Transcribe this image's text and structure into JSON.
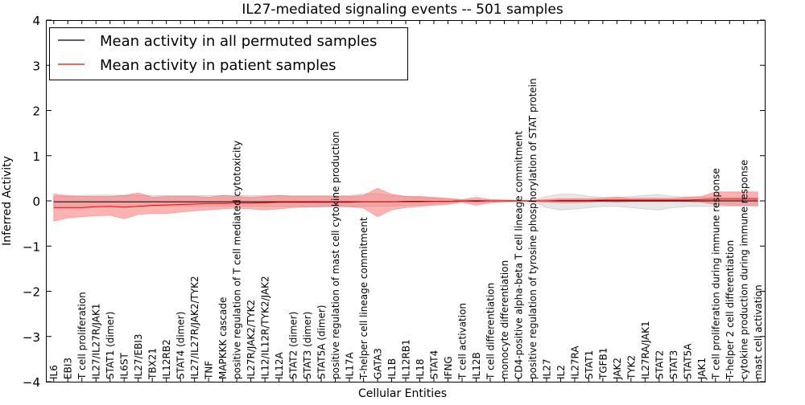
{
  "chart_data": {
    "type": "line",
    "title": "IL27-mediated signaling events -- 501 samples",
    "xlabel": "Cellular Entities",
    "ylabel": "Inferred Activity",
    "ylim": [
      -4,
      4
    ],
    "yticks": [
      -4,
      -3,
      -2,
      -1,
      0,
      1,
      2,
      3,
      4
    ],
    "ytick_labels": [
      "−4",
      "−3",
      "−2",
      "−1",
      "0",
      "1",
      "2",
      "3",
      "4"
    ],
    "grid": false,
    "legend_position": "top-left",
    "colors": {
      "permuted": "#000000",
      "patient": "#ff0000",
      "permuted_band": "#bbbbbb",
      "patient_band": "#ff5555"
    },
    "categories": [
      "IL6",
      "EBI3",
      "T cell proliferation",
      "IL27/IL27R/JAK1",
      "STAT1 (dimer)",
      "IL6ST",
      "IL27/EBI3",
      "TBX21",
      "IL12RB2",
      "STAT4 (dimer)",
      "IL27/IL27R/JAK2/TYK2",
      "TNF",
      "MAPKKK cascade",
      "positive regulation of T cell mediated cytotoxicity",
      "IL27R/JAK2/TYK2",
      "IL12/IL12R/TYK2/JAK2",
      "IL12A",
      "STAT2 (dimer)",
      "STAT3 (dimer)",
      "STAT5A (dimer)",
      "positive regulation of mast cell cytokine production",
      "IL17A",
      "T-helper cell lineage commitment",
      "GATA3",
      "IL1B",
      "IL12RB1",
      "IL18",
      "STAT4",
      "IFNG",
      "T cell activation",
      "IL12B",
      "T cell differentiation",
      "monocyte differentiation",
      "CD4-positive alpha-beta T cell lineage commitment",
      "positive regulation of tyrosine phosphorylation of STAT protein",
      "IL27",
      "IL2",
      "IL27RA",
      "STAT1",
      "TGFB1",
      "JAK2",
      "TYK2",
      "IL27RA/JAK1",
      "STAT2",
      "STAT3",
      "STAT5A",
      "JAK1",
      "T cell proliferation during immune response",
      "T-helper 2 cell differentiation",
      "cytokine production during immune response",
      "mast cell activation"
    ],
    "series": [
      {
        "name": "Mean activity in all permuted samples",
        "values": [
          -0.02,
          -0.02,
          -0.02,
          -0.02,
          -0.02,
          -0.02,
          -0.02,
          -0.02,
          -0.02,
          -0.02,
          -0.02,
          -0.02,
          -0.02,
          -0.02,
          -0.02,
          -0.02,
          -0.02,
          -0.02,
          -0.02,
          -0.02,
          -0.02,
          -0.02,
          -0.02,
          -0.02,
          -0.02,
          -0.01,
          -0.01,
          -0.01,
          -0.01,
          0.0,
          0.0,
          0.0,
          0.0,
          0.0,
          0.0,
          0.0,
          0.0,
          0.0,
          0.0,
          0.0,
          0.0,
          0.0,
          0.0,
          0.0,
          0.0,
          0.0,
          0.0,
          0.0,
          0.0,
          0.0,
          0.0
        ],
        "lower": [
          -0.12,
          -0.12,
          -0.12,
          -0.13,
          -0.13,
          -0.13,
          -0.12,
          -0.12,
          -0.12,
          -0.12,
          -0.12,
          -0.12,
          -0.12,
          -0.12,
          -0.12,
          -0.12,
          -0.12,
          -0.12,
          -0.12,
          -0.12,
          -0.12,
          -0.12,
          -0.12,
          -0.12,
          -0.11,
          -0.1,
          -0.09,
          -0.07,
          -0.05,
          -0.02,
          -0.02,
          -0.03,
          -0.02,
          -0.01,
          -0.01,
          -0.15,
          -0.2,
          -0.18,
          -0.15,
          -0.12,
          -0.12,
          -0.15,
          -0.18,
          -0.2,
          -0.15,
          -0.12,
          -0.12,
          -0.12,
          -0.12,
          -0.12,
          -0.12
        ],
        "upper": [
          0.1,
          0.1,
          0.12,
          0.13,
          0.13,
          0.12,
          0.12,
          0.12,
          0.12,
          0.12,
          0.12,
          0.12,
          0.12,
          0.12,
          0.12,
          0.12,
          0.12,
          0.12,
          0.12,
          0.12,
          0.12,
          0.12,
          0.16,
          0.16,
          0.12,
          0.1,
          0.08,
          0.06,
          0.04,
          0.02,
          0.02,
          0.02,
          0.02,
          0.01,
          0.01,
          0.1,
          0.15,
          0.15,
          0.1,
          0.08,
          0.08,
          0.1,
          0.12,
          0.14,
          0.1,
          0.08,
          0.08,
          0.08,
          0.08,
          0.08,
          0.08
        ]
      },
      {
        "name": "Mean activity in patient samples",
        "values": [
          -0.15,
          -0.15,
          -0.15,
          -0.13,
          -0.12,
          -0.14,
          -0.12,
          -0.1,
          -0.09,
          -0.08,
          -0.07,
          -0.06,
          -0.06,
          -0.05,
          -0.05,
          -0.04,
          -0.03,
          -0.03,
          -0.03,
          -0.03,
          -0.03,
          -0.03,
          -0.02,
          -0.02,
          -0.02,
          -0.02,
          -0.02,
          -0.01,
          -0.01,
          0.0,
          -0.01,
          0.0,
          0.0,
          0.0,
          0.0,
          0.0,
          0.01,
          0.01,
          0.01,
          0.02,
          0.02,
          0.02,
          0.02,
          0.02,
          0.02,
          0.02,
          0.03,
          0.04,
          0.04,
          0.04,
          0.04
        ],
        "lower": [
          -0.45,
          -0.38,
          -0.35,
          -0.33,
          -0.32,
          -0.4,
          -0.3,
          -0.28,
          -0.28,
          -0.25,
          -0.22,
          -0.2,
          -0.18,
          -0.16,
          -0.18,
          -0.2,
          -0.18,
          -0.15,
          -0.14,
          -0.13,
          -0.12,
          -0.13,
          -0.16,
          -0.35,
          -0.2,
          -0.15,
          -0.12,
          -0.1,
          -0.08,
          -0.03,
          -0.1,
          -0.04,
          -0.02,
          -0.01,
          -0.01,
          -0.03,
          -0.04,
          -0.04,
          -0.03,
          -0.02,
          -0.03,
          -0.02,
          -0.02,
          -0.02,
          -0.02,
          -0.02,
          -0.03,
          -0.08,
          -0.1,
          -0.1,
          -0.1
        ],
        "upper": [
          0.15,
          0.12,
          0.1,
          0.1,
          0.1,
          0.12,
          0.18,
          0.08,
          0.1,
          0.1,
          0.1,
          0.08,
          0.12,
          0.1,
          0.08,
          0.1,
          0.12,
          0.1,
          0.1,
          0.1,
          0.1,
          0.1,
          0.12,
          0.28,
          0.15,
          0.1,
          0.1,
          0.08,
          0.06,
          0.03,
          0.08,
          0.03,
          0.02,
          0.01,
          0.01,
          0.03,
          0.05,
          0.05,
          0.05,
          0.06,
          0.08,
          0.06,
          0.06,
          0.06,
          0.06,
          0.08,
          0.1,
          0.2,
          0.2,
          0.2,
          0.2
        ]
      }
    ]
  }
}
